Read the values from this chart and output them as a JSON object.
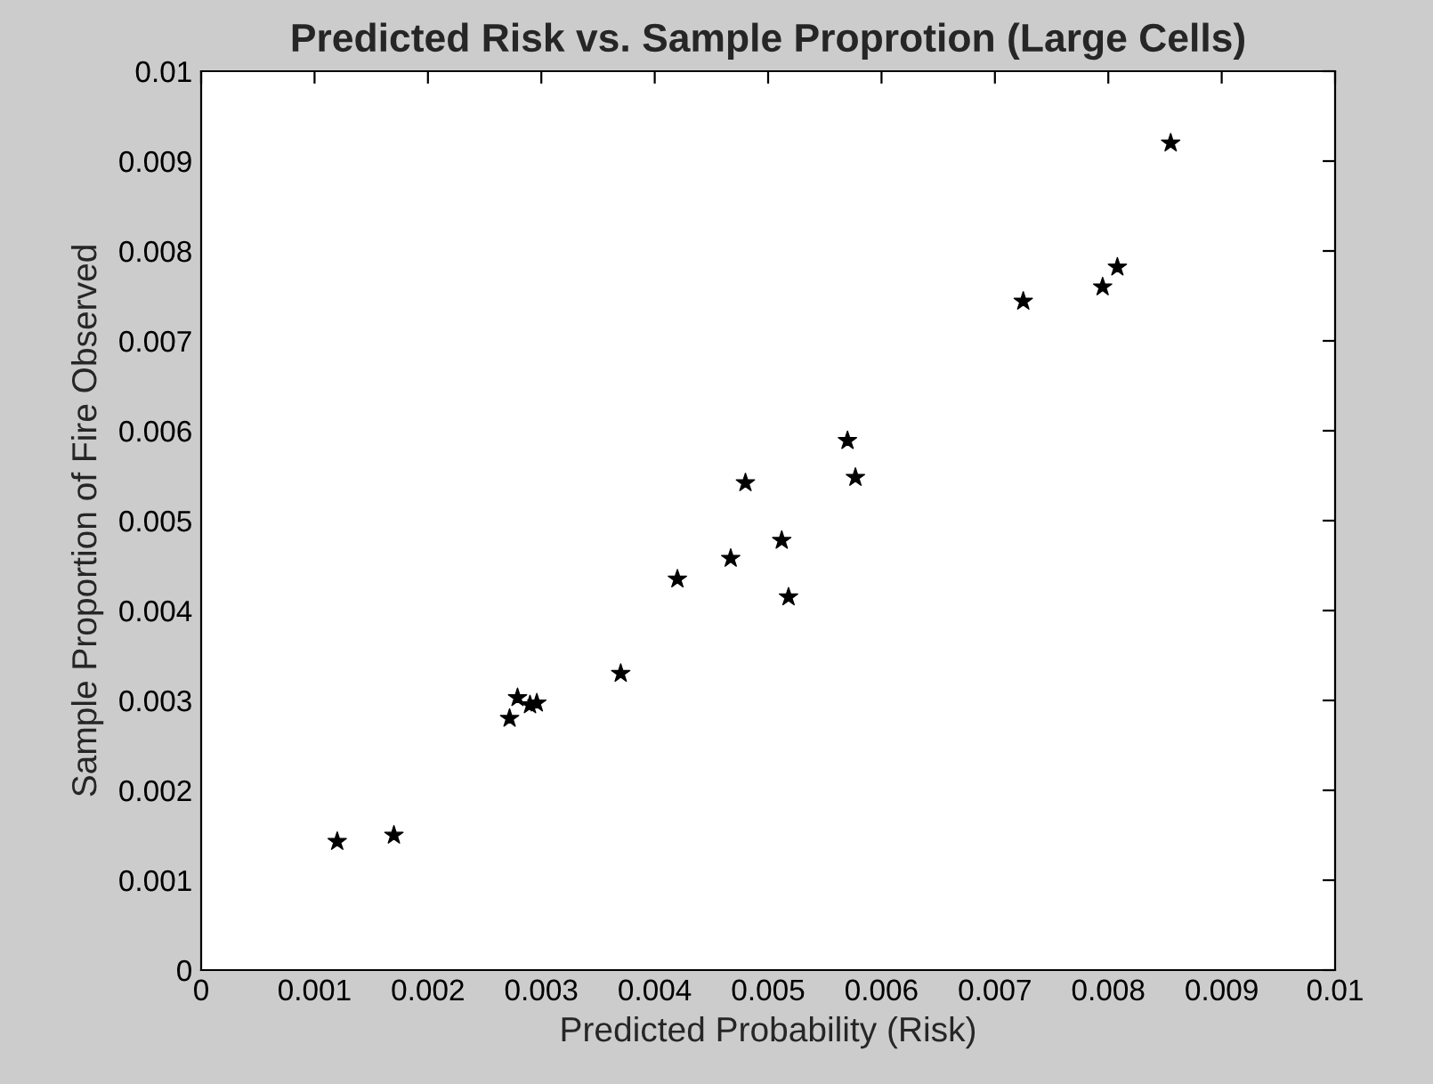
{
  "chart_data": {
    "type": "scatter",
    "title": "Predicted Risk vs. Sample Proprotion (Large Cells)",
    "xlabel": "Predicted Probability (Risk)",
    "ylabel": "Sample Proportion of Fire Observed",
    "x": [
      0.0012,
      0.0017,
      0.00272,
      0.00279,
      0.0029,
      0.00296,
      0.0037,
      0.0042,
      0.00467,
      0.0048,
      0.00512,
      0.00518,
      0.0057,
      0.00577,
      0.00725,
      0.00795,
      0.00808,
      0.00855
    ],
    "series": [
      {
        "color": "#000000",
        "values": [
          0.00143,
          0.0015,
          0.0028,
          0.00303,
          0.00295,
          0.00297,
          0.0033,
          0.00435,
          0.00458,
          0.00542,
          0.00478,
          0.00415,
          0.00589,
          0.00548,
          0.00744,
          0.0076,
          0.00782,
          0.0092
        ]
      }
    ],
    "marker": "star",
    "grid": false,
    "xlim": [
      0,
      0.01
    ],
    "ylim": [
      0,
      0.01
    ],
    "xticks": [
      0,
      0.001,
      0.002,
      0.003,
      0.004,
      0.005,
      0.006,
      0.007,
      0.008,
      0.009,
      0.01
    ],
    "yticks": [
      0,
      0.001,
      0.002,
      0.003,
      0.004,
      0.005,
      0.006,
      0.007,
      0.008,
      0.009,
      0.01
    ]
  }
}
